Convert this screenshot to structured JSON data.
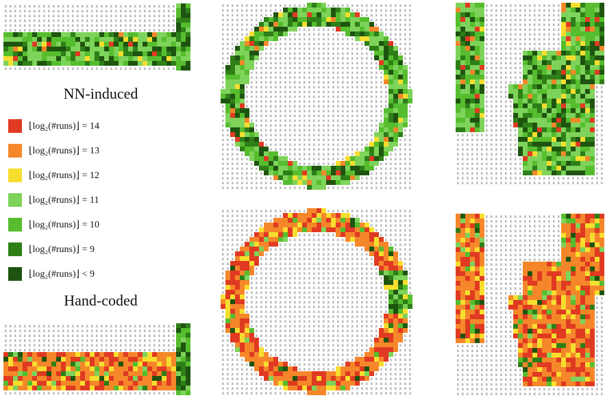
{
  "sections": {
    "nn_title": "NN-induced",
    "hand_title": "Hand-coded"
  },
  "legend": {
    "items": [
      {
        "label": "⌊log₂(#runs)⌋ = 14",
        "color": "#e03a22"
      },
      {
        "label": "⌊log₂(#runs)⌋ = 13",
        "color": "#f5872a"
      },
      {
        "label": "⌊log₂(#runs)⌋ = 12",
        "color": "#f7de2e"
      },
      {
        "label": "⌊log₂(#runs)⌋ = 11",
        "color": "#7ed35b"
      },
      {
        "label": "⌊log₂(#runs)⌋ = 10",
        "color": "#56bd2e"
      },
      {
        "label": "⌊log₂(#runs)⌋ = 9",
        "color": "#2e7f18"
      },
      {
        "label": "⌊log₂(#runs)⌋ < 9",
        "color": "#1e5410"
      }
    ]
  },
  "marker": "x",
  "panels": [
    {
      "id": "nn-straight-track",
      "shape": "straight",
      "palette": "nn"
    },
    {
      "id": "nn-ring-track",
      "shape": "ring",
      "palette": "nn"
    },
    {
      "id": "nn-u-track",
      "shape": "u",
      "palette": "nn"
    },
    {
      "id": "hand-straight-track",
      "shape": "straight",
      "palette": "hand"
    },
    {
      "id": "hand-ring-track",
      "shape": "ring",
      "palette": "hand"
    },
    {
      "id": "hand-u-track",
      "shape": "u",
      "palette": "hand"
    }
  ]
}
